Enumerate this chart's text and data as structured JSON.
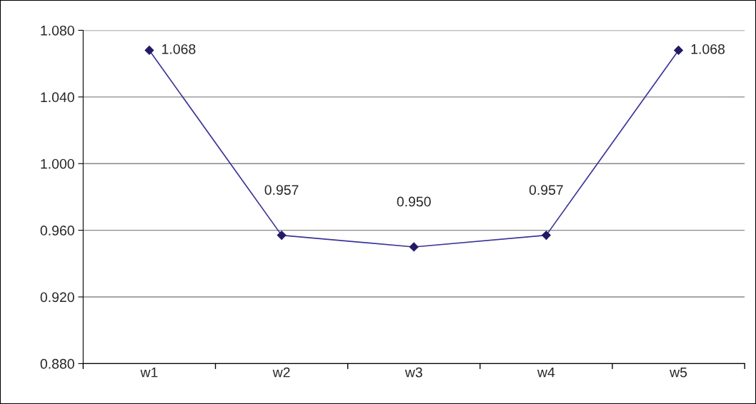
{
  "chart_data": {
    "type": "line",
    "categories": [
      "w1",
      "w2",
      "w3",
      "w4",
      "w5"
    ],
    "series": [
      {
        "color": "#3a3399",
        "values": [
          1.068,
          0.957,
          0.95,
          0.957,
          1.068
        ],
        "value_labels": [
          "1.068",
          "0.957",
          "0.950",
          "0.957",
          "1.068"
        ]
      }
    ],
    "ylim": [
      0.88,
      1.08
    ],
    "yticks": [
      {
        "value": 0.88,
        "label": "0.880"
      },
      {
        "value": 0.92,
        "label": "0.920"
      },
      {
        "value": 0.96,
        "label": "0.960"
      },
      {
        "value": 1.0,
        "label": "1.000"
      },
      {
        "value": 1.04,
        "label": "1.040"
      },
      {
        "value": 1.08,
        "label": "1.080"
      }
    ],
    "grid": "y",
    "marker": "diamond",
    "line_style": "solid",
    "legend": false
  }
}
